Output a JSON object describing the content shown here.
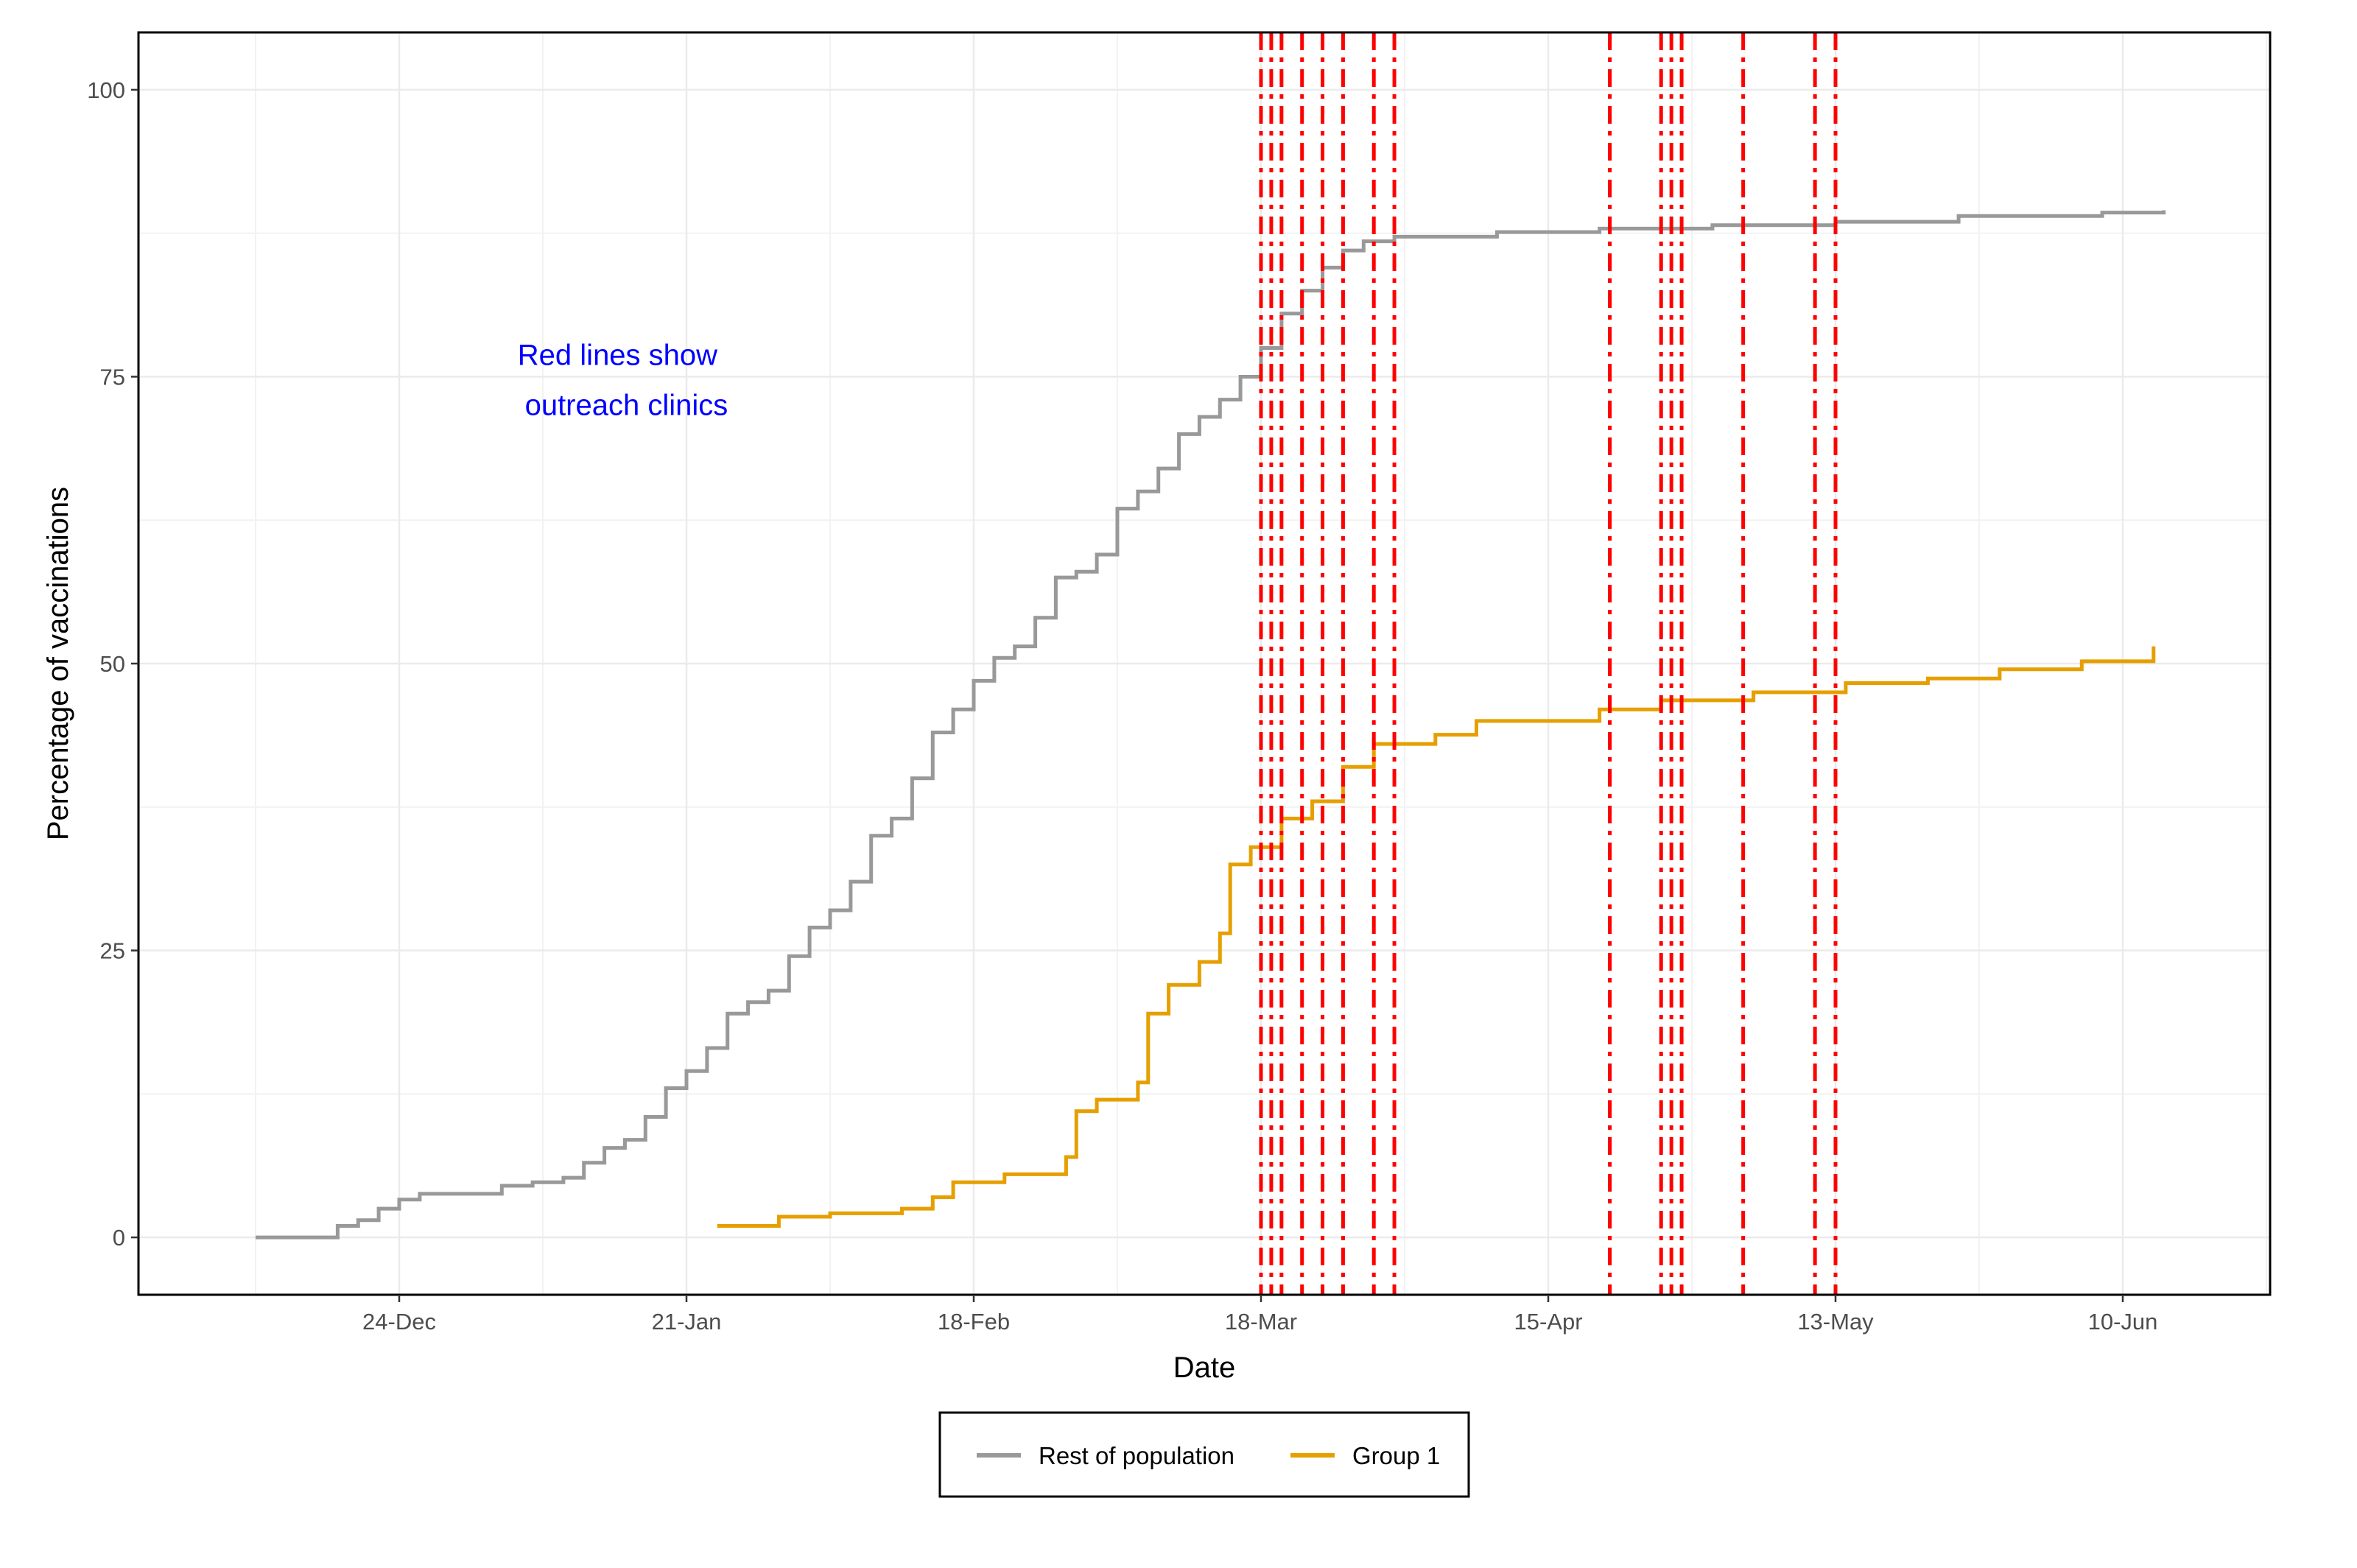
{
  "chart_data": {
    "type": "line",
    "xlabel": "Date",
    "ylabel": "Percentage of vaccinations",
    "x_tick_labels": [
      "24-Dec",
      "21-Jan",
      "18-Feb",
      "18-Mar",
      "15-Apr",
      "13-May",
      "10-Jun"
    ],
    "y_tick_labels": [
      "0",
      "25",
      "50",
      "75",
      "100"
    ],
    "ylim": [
      -5,
      105
    ],
    "grid": true,
    "legend_position": "bottom",
    "annotation": {
      "lines": [
        "Red lines show",
        "outreach clinics"
      ],
      "color": "#0000ff",
      "date": "2021-01-15",
      "y": 75
    },
    "series": [
      {
        "name": "Rest of population",
        "color": "#999999",
        "step": true,
        "points": [
          [
            "2020-12-10",
            0
          ],
          [
            "2020-12-17",
            0
          ],
          [
            "2020-12-18",
            1
          ],
          [
            "2020-12-20",
            1.5
          ],
          [
            "2020-12-22",
            2.5
          ],
          [
            "2020-12-24",
            3.3
          ],
          [
            "2020-12-26",
            3.8
          ],
          [
            "2020-12-31",
            3.8
          ],
          [
            "2021-01-03",
            4.5
          ],
          [
            "2021-01-06",
            4.8
          ],
          [
            "2021-01-09",
            5.2
          ],
          [
            "2021-01-11",
            6.5
          ],
          [
            "2021-01-13",
            7.8
          ],
          [
            "2021-01-15",
            8.5
          ],
          [
            "2021-01-17",
            10.5
          ],
          [
            "2021-01-19",
            13
          ],
          [
            "2021-01-21",
            14.5
          ],
          [
            "2021-01-23",
            16.5
          ],
          [
            "2021-01-25",
            19.5
          ],
          [
            "2021-01-27",
            20.5
          ],
          [
            "2021-01-29",
            21.5
          ],
          [
            "2021-01-31",
            24.5
          ],
          [
            "2021-02-02",
            27
          ],
          [
            "2021-02-04",
            28.5
          ],
          [
            "2021-02-06",
            31
          ],
          [
            "2021-02-08",
            35
          ],
          [
            "2021-02-10",
            36.5
          ],
          [
            "2021-02-12",
            40
          ],
          [
            "2021-02-14",
            44
          ],
          [
            "2021-02-16",
            46
          ],
          [
            "2021-02-18",
            48.5
          ],
          [
            "2021-02-20",
            50.5
          ],
          [
            "2021-02-22",
            51.5
          ],
          [
            "2021-02-24",
            54
          ],
          [
            "2021-02-26",
            57.5
          ],
          [
            "2021-02-28",
            58
          ],
          [
            "2021-03-02",
            59.5
          ],
          [
            "2021-03-04",
            63.5
          ],
          [
            "2021-03-06",
            65
          ],
          [
            "2021-03-08",
            67
          ],
          [
            "2021-03-10",
            70
          ],
          [
            "2021-03-12",
            71.5
          ],
          [
            "2021-03-14",
            73
          ],
          [
            "2021-03-16",
            75
          ],
          [
            "2021-03-18",
            77.5
          ],
          [
            "2021-03-20",
            80.5
          ],
          [
            "2021-03-22",
            82.5
          ],
          [
            "2021-03-24",
            84.5
          ],
          [
            "2021-03-26",
            86
          ],
          [
            "2021-03-28",
            86.8
          ],
          [
            "2021-03-31",
            87.2
          ],
          [
            "2021-04-10",
            87.6
          ],
          [
            "2021-04-20",
            87.9
          ],
          [
            "2021-05-01",
            88.2
          ],
          [
            "2021-05-13",
            88.5
          ],
          [
            "2021-05-25",
            89
          ],
          [
            "2021-06-08",
            89.3
          ],
          [
            "2021-06-14",
            89.5
          ]
        ]
      },
      {
        "name": "Group 1",
        "color": "#e69f00",
        "step": true,
        "points": [
          [
            "2021-01-24",
            1
          ],
          [
            "2021-01-30",
            1.8
          ],
          [
            "2021-02-04",
            2.1
          ],
          [
            "2021-02-11",
            2.5
          ],
          [
            "2021-02-14",
            3.5
          ],
          [
            "2021-02-16",
            4.8
          ],
          [
            "2021-02-21",
            5.5
          ],
          [
            "2021-02-27",
            7
          ],
          [
            "2021-02-28",
            11
          ],
          [
            "2021-03-02",
            12
          ],
          [
            "2021-03-06",
            13.5
          ],
          [
            "2021-03-07",
            19.5
          ],
          [
            "2021-03-09",
            22
          ],
          [
            "2021-03-12",
            24
          ],
          [
            "2021-03-14",
            26.5
          ],
          [
            "2021-03-15",
            32.5
          ],
          [
            "2021-03-17",
            34
          ],
          [
            "2021-03-20",
            36.5
          ],
          [
            "2021-03-23",
            38
          ],
          [
            "2021-03-26",
            41
          ],
          [
            "2021-03-29",
            43
          ],
          [
            "2021-04-04",
            43.8
          ],
          [
            "2021-04-08",
            45
          ],
          [
            "2021-04-20",
            46
          ],
          [
            "2021-04-26",
            46.8
          ],
          [
            "2021-05-05",
            47.5
          ],
          [
            "2021-05-14",
            48.3
          ],
          [
            "2021-05-22",
            48.7
          ],
          [
            "2021-05-29",
            49.5
          ],
          [
            "2021-06-06",
            50.2
          ],
          [
            "2021-06-13",
            51.5
          ]
        ]
      }
    ],
    "outreach_clinics": {
      "color": "#ff0000",
      "dates": [
        "2021-03-18",
        "2021-03-19",
        "2021-03-20",
        "2021-03-22",
        "2021-03-24",
        "2021-03-26",
        "2021-03-29",
        "2021-03-31",
        "2021-04-21",
        "2021-04-26",
        "2021-04-27",
        "2021-04-28",
        "2021-05-04",
        "2021-05-11",
        "2021-05-13"
      ]
    }
  }
}
